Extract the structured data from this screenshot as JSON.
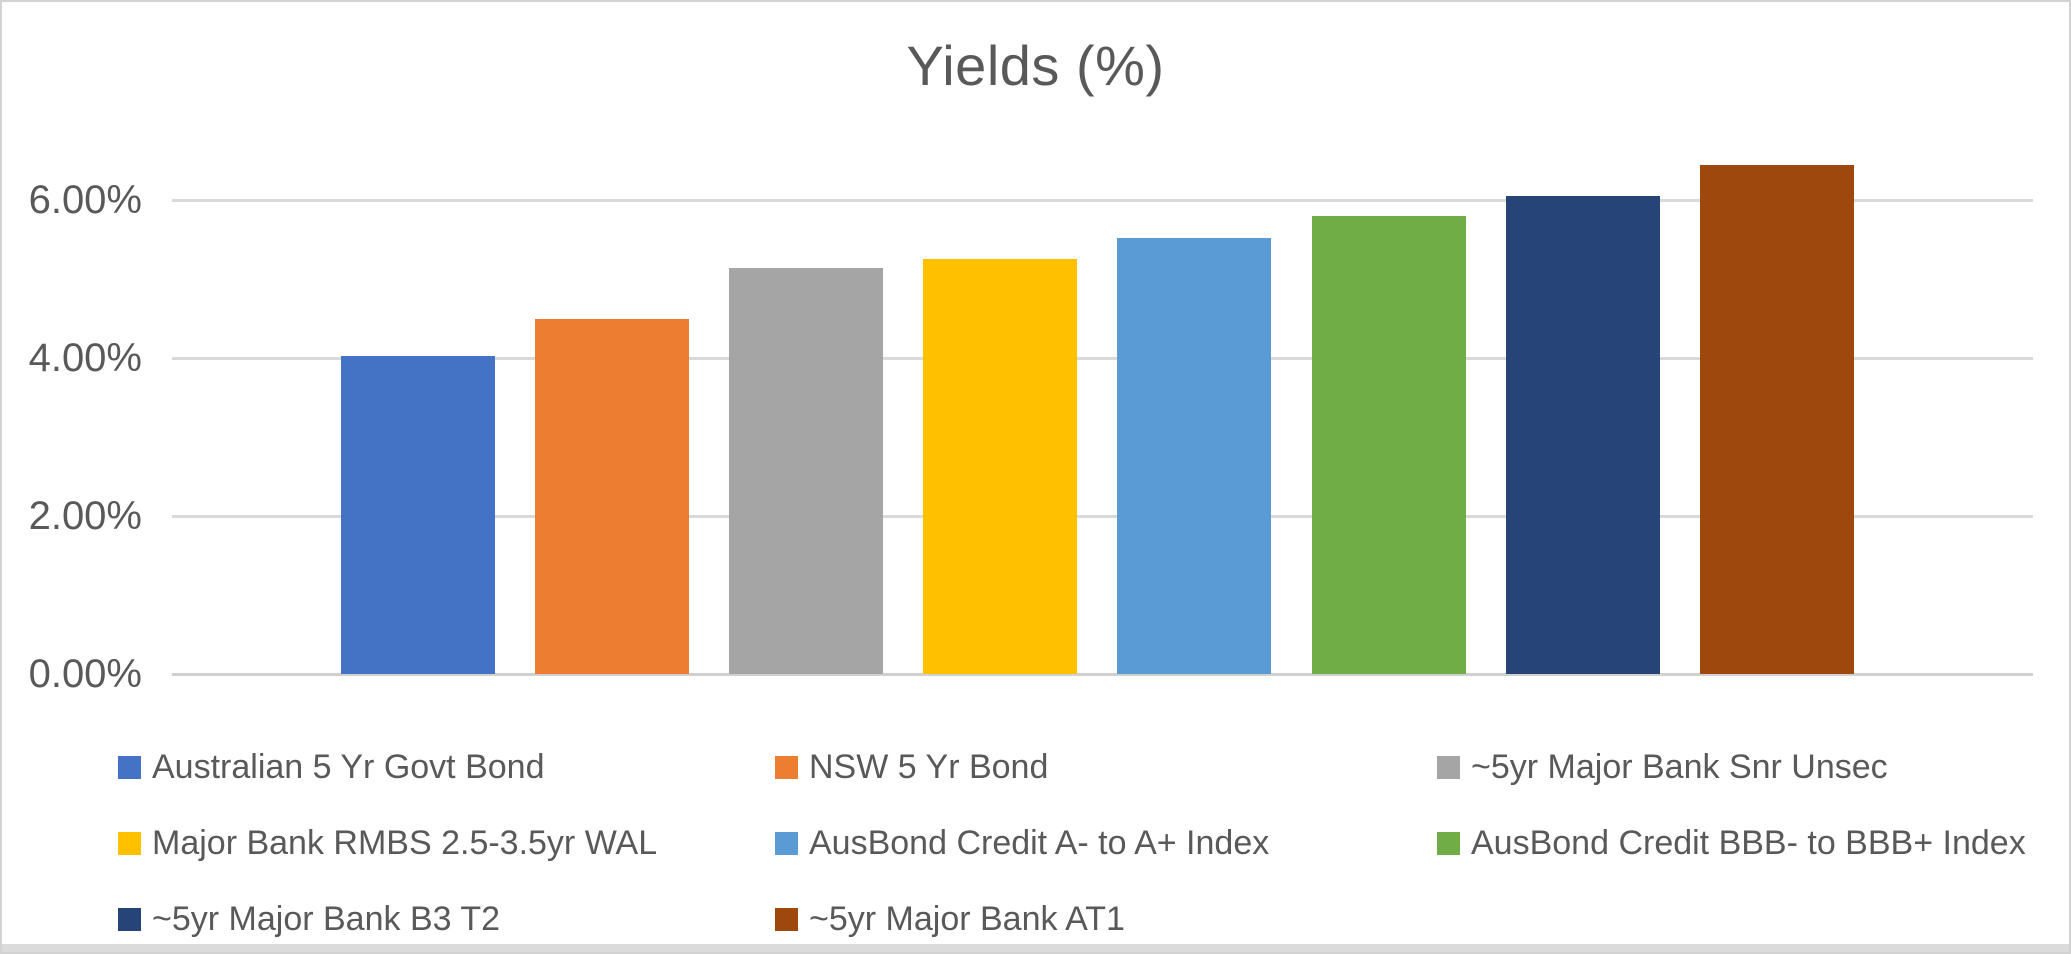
{
  "chart_data": {
    "type": "bar",
    "title": "Yields (%)",
    "categories": [
      "Australian 5 Yr Govt Bond",
      "NSW 5 Yr Bond",
      "~5yr Major Bank Snr Unsec",
      "Major Bank RMBS 2.5-3.5yr WAL",
      "AusBond Credit A- to A+ Index",
      "AusBond Credit BBB- to BBB+ Index",
      "~5yr Major Bank B3 T2",
      "~5yr Major Bank AT1"
    ],
    "values": [
      4.02,
      4.5,
      5.14,
      5.25,
      5.52,
      5.8,
      6.05,
      6.44
    ],
    "colors": [
      "#4472C4",
      "#ED7D31",
      "#A5A5A5",
      "#FFC000",
      "#5B9BD5",
      "#70AD47",
      "#264478",
      "#9E480E"
    ],
    "unit": "%",
    "xlabel": "",
    "ylabel": "",
    "ylim": [
      0,
      7
    ],
    "yticks": [
      {
        "label": "0.00%",
        "value": 0
      },
      {
        "label": "2.00%",
        "value": 2
      },
      {
        "label": "4.00%",
        "value": 4
      },
      {
        "label": "6.00%",
        "value": 6
      }
    ],
    "grid": "horizontal",
    "gridline_color": "#D9D9D9",
    "legend_position": "bottom",
    "text_color": "#595959",
    "background_color": "#FFFFFF"
  }
}
